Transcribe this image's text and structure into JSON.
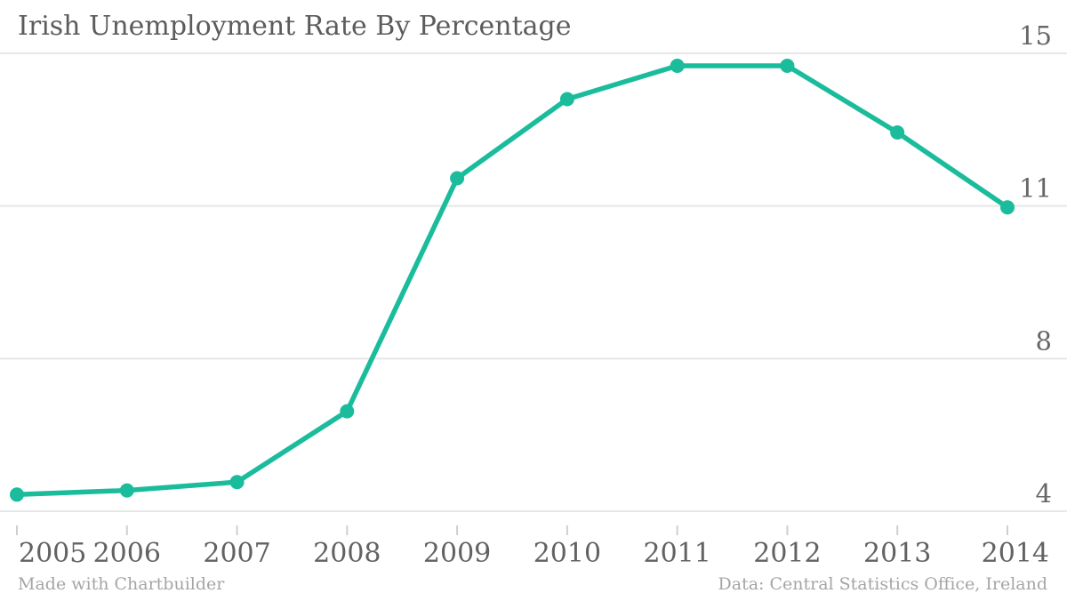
{
  "header": {
    "title": "Irish Unemployment Rate By Percentage"
  },
  "footer": {
    "left": "Made with Chartbuilder",
    "right": "Data: Central Statistics Office, Ireland"
  },
  "colors": {
    "accent": "#1abc9c",
    "grid": "#e7e7e7",
    "tick": "#cfcfcf",
    "text": "#666666",
    "muted": "#a5a5a5"
  },
  "chart_data": {
    "type": "line",
    "title": "Irish Unemployment Rate By Percentage",
    "categories": [
      "2005",
      "2006",
      "2007",
      "2008",
      "2009",
      "2010",
      "2011",
      "2012",
      "2013",
      "2014"
    ],
    "values": [
      4.4,
      4.5,
      4.7,
      6.4,
      12.0,
      13.9,
      14.7,
      14.7,
      13.1,
      11.3
    ],
    "xlabel": "",
    "ylabel": "",
    "ylim": [
      4,
      15
    ],
    "ytick_labels": [
      "15",
      "11",
      "8",
      "4"
    ],
    "grid": "horizontal",
    "legend": "none",
    "source": "Data: Central Statistics Office, Ireland",
    "credit": "Made with Chartbuilder"
  }
}
